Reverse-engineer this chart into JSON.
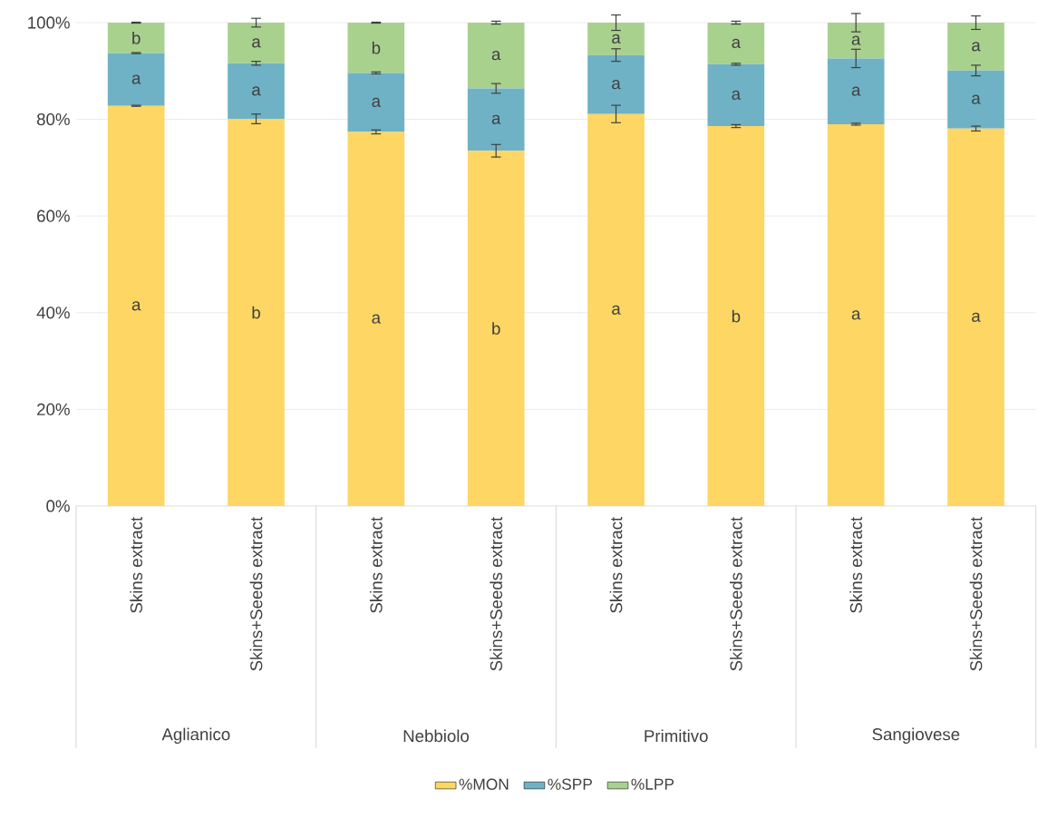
{
  "chart_data": {
    "type": "bar",
    "stacked": true,
    "categories": [
      "Skins extract",
      "Skins+Seeds extract",
      "Skins extract",
      "Skins+Seeds extract",
      "Skins extract",
      "Skins+Seeds extract",
      "Skins extract",
      "Skins+Seeds extract"
    ],
    "annotations": [
      "Aglianico",
      "Nebbiolo",
      "Primitivo",
      "Sangiovese"
    ],
    "series": [
      {
        "name": "%MON",
        "color": "#fdd663",
        "values": [
          82.8,
          80.1,
          77.4,
          73.5,
          81.1,
          78.6,
          79.0,
          78.1
        ],
        "errors": [
          0.1,
          1.0,
          0.4,
          1.3,
          1.8,
          0.3,
          0.2,
          0.5
        ],
        "value_labels": [
          "a",
          "b",
          "a",
          "b",
          "a",
          "b",
          "a",
          "a"
        ]
      },
      {
        "name": "%SPP",
        "color": "#6fb2c6",
        "values": [
          10.9,
          11.5,
          12.2,
          12.9,
          12.2,
          12.8,
          13.6,
          12.0
        ],
        "errors": [
          0.1,
          0.4,
          0.2,
          1.0,
          1.3,
          0.2,
          1.9,
          1.1
        ],
        "value_labels": [
          "a",
          "a",
          "a",
          "a",
          "a",
          "a",
          "a",
          "a"
        ]
      },
      {
        "name": "%LPP",
        "color": "#a9d18e",
        "values": [
          6.3,
          8.4,
          10.4,
          13.6,
          6.7,
          8.6,
          7.4,
          9.9
        ],
        "errors": [
          0.1,
          0.9,
          0.1,
          0.3,
          1.6,
          0.3,
          1.9,
          1.4
        ],
        "value_labels": [
          "b",
          "a",
          "b",
          "a",
          "a",
          "a",
          "a",
          "a"
        ]
      }
    ],
    "ylim": [
      0,
      100
    ],
    "yticks": [
      {
        "value": 0,
        "label": "0%"
      },
      {
        "value": 20,
        "label": "20%"
      },
      {
        "value": 40,
        "label": "40%"
      },
      {
        "value": 60,
        "label": "60%"
      },
      {
        "value": 80,
        "label": "80%"
      },
      {
        "value": 100,
        "label": "100%"
      }
    ],
    "grid": "y",
    "legend": "bottom"
  }
}
